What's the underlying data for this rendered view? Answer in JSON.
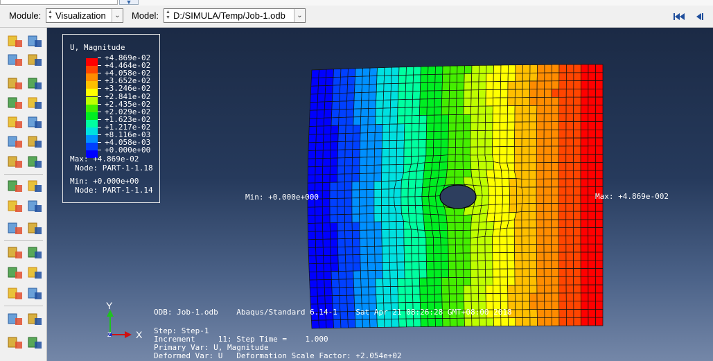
{
  "toolbar": {
    "module_label": "Module:",
    "module_value": "Visualization",
    "model_label": "Model:",
    "model_value": "D:/SIMULA/Temp/Job-1.odb",
    "first_frame_icon": "first-frame-icon",
    "previous_frame_icon": "previous-frame-icon"
  },
  "left_toolbar": {
    "icons": [
      "numbering-icon",
      "numbering-alt-icon",
      "undeformed-shape-icon",
      "plot-options-icon",
      "deformed-shape-icon",
      "superimpose-icon",
      "contour-plot-icon",
      "contour-options-icon",
      "symbol-plot-icon",
      "symbol-options-icon",
      "material-orientation-icon",
      "material-options-icon",
      "allow-multiple-plots-icon",
      "overlay-plot-icon",
      "animate-scale-icon",
      "animate-time-icon",
      "animate-harmonic-icon",
      "animation-options-icon",
      "view-cut-icon",
      "view-cut-manager-icon",
      "xy-data-icon",
      "xy-data-manager-icon",
      "create-path-icon",
      "xy-plot-icon",
      "display-group-icon",
      "display-group-manager-icon",
      "free-body-icon",
      "free-body-manager-icon",
      "query-stress-icon",
      "stress-linearization-icon"
    ]
  },
  "legend": {
    "title": "U, Magnitude",
    "values": [
      "+4.869e-02",
      "+4.464e-02",
      "+4.058e-02",
      "+3.652e-02",
      "+3.246e-02",
      "+2.841e-02",
      "+2.435e-02",
      "+2.029e-02",
      "+1.623e-02",
      "+1.217e-02",
      "+8.116e-03",
      "+4.058e-03",
      "+0.000e+00"
    ],
    "colors": [
      "#ff0000",
      "#ff4500",
      "#ff8c00",
      "#ffbf00",
      "#ffff00",
      "#bfff00",
      "#44ee00",
      "#00ee22",
      "#00ffa0",
      "#00e0e0",
      "#0090ff",
      "#0040ff",
      "#0000ff"
    ],
    "max_label": "Max: +4.869e-02",
    "max_node": "Node: PART-1-1.18",
    "min_label": "Min: +0.000e+00",
    "min_node": "Node: PART-1-1.14"
  },
  "annotations": {
    "min_marker": "Min: +0.000e+000",
    "max_marker": "Max: +4.869e-002"
  },
  "status": {
    "line1": "ODB: Job-1.odb    Abaqus/Standard 6.14-1    Sat Apr 21 08:26:28 GMT+08:00 2018",
    "line2": "Step: Step-1",
    "line3": "Increment     11: Step Time =    1.000",
    "line4": "Primary Var: U, Magnitude",
    "line5": "Deformed Var: U   Deformation Scale Factor: +2.054e+02"
  },
  "triad": {
    "y": "Y",
    "x": "X",
    "z": "Z"
  }
}
